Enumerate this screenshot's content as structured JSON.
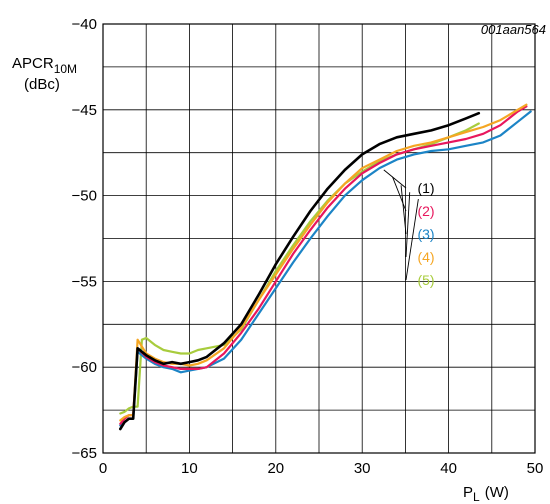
{
  "figure_id": "001aan564",
  "chart_data": {
    "type": "line",
    "title": "",
    "ylabel": {
      "main": "APCR",
      "sub": "10M",
      "unit": "(dBc)"
    },
    "xlabel": {
      "main": "P",
      "sub": "L",
      "unit": "(W)"
    },
    "xlim": [
      0,
      50
    ],
    "ylim": [
      -65,
      -40
    ],
    "xticks": [
      0,
      10,
      20,
      30,
      40,
      50
    ],
    "yticks": [
      -65,
      -60,
      -55,
      -50,
      -45,
      -40
    ],
    "xtick_labels": [
      "0",
      "10",
      "20",
      "30",
      "40",
      "50"
    ],
    "ytick_labels": [
      "−65",
      "−60",
      "−55",
      "−50",
      "−45",
      "−40"
    ],
    "grid": true,
    "series": [
      {
        "name": "(1)",
        "color": "#000000",
        "legend_anchor": [
          32.5,
          -48.5
        ],
        "x": [
          2,
          2.5,
          3,
          3.5,
          4,
          5,
          6,
          7,
          8,
          9,
          10,
          11,
          12,
          14,
          16,
          18,
          20,
          22,
          24,
          26,
          28,
          30,
          32,
          34,
          36,
          38,
          40,
          42,
          43.5
        ],
        "y": [
          -63.6,
          -63.2,
          -63.0,
          -63.0,
          -58.9,
          -59.3,
          -59.6,
          -59.8,
          -59.7,
          -59.8,
          -59.7,
          -59.6,
          -59.4,
          -58.6,
          -57.5,
          -55.8,
          -54.0,
          -52.4,
          -50.9,
          -49.6,
          -48.5,
          -47.6,
          -47.0,
          -46.6,
          -46.4,
          -46.2,
          -45.9,
          -45.5,
          -45.2
        ]
      },
      {
        "name": "(2)",
        "color": "#e8175d",
        "legend_anchor": [
          33.5,
          -48.9
        ],
        "x": [
          2,
          2.5,
          3,
          3.5,
          4,
          5,
          6,
          7,
          8,
          9,
          10,
          11,
          12,
          14,
          16,
          18,
          20,
          22,
          24,
          26,
          28,
          30,
          32,
          34,
          36,
          38,
          40,
          42,
          44,
          46,
          48,
          49
        ],
        "y": [
          -63.3,
          -63.0,
          -62.8,
          -62.8,
          -58.9,
          -59.4,
          -59.7,
          -59.9,
          -60.0,
          -60.1,
          -60.1,
          -60.1,
          -60.0,
          -59.2,
          -58.0,
          -56.6,
          -55.0,
          -53.4,
          -52.0,
          -50.7,
          -49.6,
          -48.7,
          -48.1,
          -47.6,
          -47.3,
          -47.1,
          -46.9,
          -46.7,
          -46.4,
          -45.9,
          -45.1,
          -44.8
        ]
      },
      {
        "name": "(3)",
        "color": "#1c84c6",
        "legend_anchor": [
          34.5,
          -49.4
        ],
        "x": [
          2,
          2.5,
          3,
          3.5,
          4,
          5,
          6,
          7,
          8,
          9,
          10,
          11,
          12,
          14,
          16,
          18,
          20,
          22,
          24,
          26,
          28,
          30,
          32,
          34,
          36,
          38,
          40,
          42,
          44,
          46,
          48,
          49.5
        ],
        "y": [
          -63.4,
          -63.2,
          -63.0,
          -63.0,
          -59.1,
          -59.5,
          -59.8,
          -60.0,
          -60.1,
          -60.3,
          -60.2,
          -60.1,
          -60.0,
          -59.5,
          -58.4,
          -56.9,
          -55.4,
          -53.9,
          -52.5,
          -51.2,
          -50.0,
          -49.1,
          -48.4,
          -47.9,
          -47.6,
          -47.4,
          -47.3,
          -47.1,
          -46.9,
          -46.5,
          -45.7,
          -45.1
        ]
      },
      {
        "name": "(4)",
        "color": "#f5a623",
        "legend_anchor": [
          35.5,
          -49.8
        ],
        "x": [
          2,
          2.5,
          3,
          3.5,
          4,
          5,
          6,
          7,
          8,
          9,
          10,
          11,
          12,
          14,
          16,
          18,
          20,
          22,
          24,
          26,
          28,
          30,
          32,
          34,
          36,
          38,
          40,
          42,
          44,
          46,
          48,
          49
        ],
        "y": [
          -63.1,
          -62.9,
          -62.8,
          -62.8,
          -58.4,
          -59.2,
          -59.5,
          -59.7,
          -59.8,
          -59.8,
          -59.9,
          -59.8,
          -59.6,
          -58.9,
          -57.7,
          -56.1,
          -54.6,
          -53.1,
          -51.7,
          -50.4,
          -49.3,
          -48.4,
          -47.9,
          -47.4,
          -47.1,
          -46.9,
          -46.6,
          -46.3,
          -46.0,
          -45.6,
          -45.0,
          -44.7
        ]
      },
      {
        "name": "(5)",
        "color": "#a8cc3d",
        "legend_anchor": [
          36.5,
          -50.2
        ],
        "x": [
          2,
          2.5,
          3,
          3.5,
          4,
          4.5,
          5,
          6,
          7,
          8,
          9,
          10,
          11,
          12,
          14,
          16,
          18,
          20,
          22,
          24,
          26,
          28,
          30,
          32,
          34,
          36,
          38,
          40,
          42,
          43.5
        ],
        "y": [
          -62.7,
          -62.6,
          -62.4,
          -62.3,
          -62.3,
          -58.4,
          -58.3,
          -58.7,
          -59.0,
          -59.1,
          -59.2,
          -59.2,
          -59.0,
          -58.9,
          -58.7,
          -57.8,
          -56.1,
          -54.4,
          -52.9,
          -51.5,
          -50.3,
          -49.3,
          -48.6,
          -48.0,
          -47.6,
          -47.3,
          -47.0,
          -46.6,
          -46.2,
          -45.8
        ]
      }
    ]
  }
}
